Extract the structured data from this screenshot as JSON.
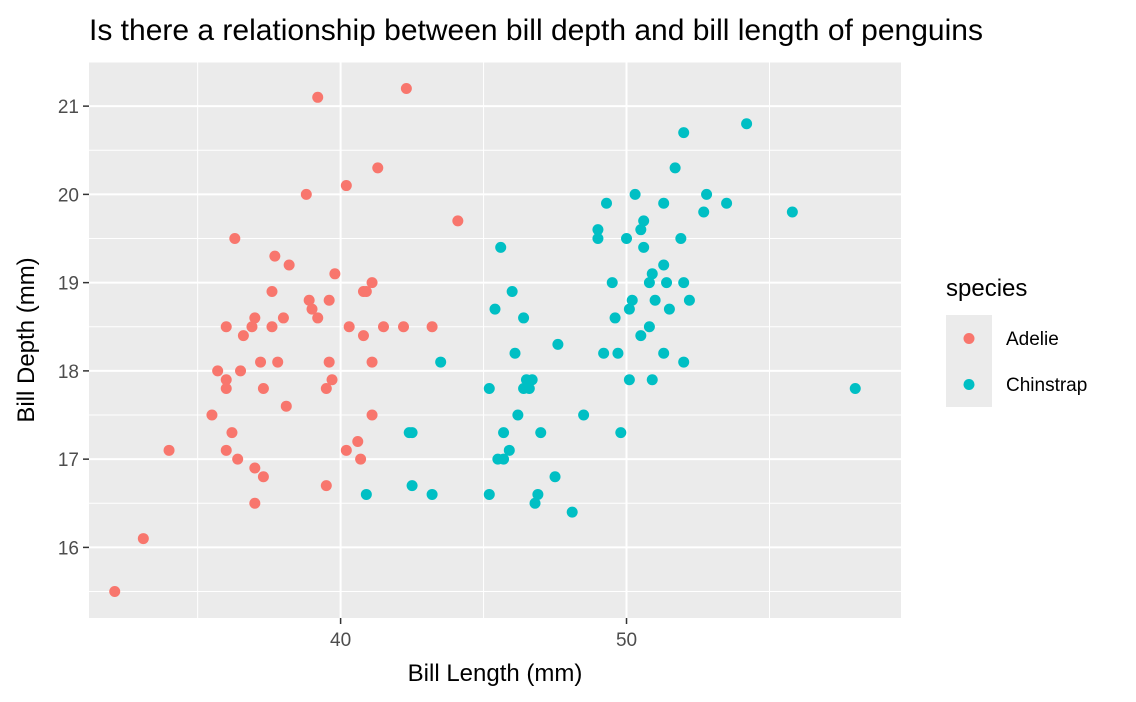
{
  "chart_data": {
    "type": "scatter",
    "title": "Is there a relationship between bill depth and bill length of penguins",
    "xlabel": "Bill Length (mm)",
    "ylabel": "Bill Depth (mm)",
    "xlim": [
      31.2,
      59.6
    ],
    "ylim": [
      15.2,
      21.5
    ],
    "xticks": [
      40,
      50
    ],
    "yticks": [
      16,
      17,
      18,
      19,
      20,
      21
    ],
    "grid": true,
    "legend": {
      "title": "species",
      "placement": "right"
    },
    "series": [
      {
        "name": "Adelie",
        "color": "#F8766D",
        "points": [
          [
            39.2,
            21.1
          ],
          [
            42.3,
            21.2
          ],
          [
            41.3,
            20.3
          ],
          [
            38.8,
            20.0
          ],
          [
            40.2,
            20.1
          ],
          [
            44.1,
            19.7
          ],
          [
            36.3,
            19.5
          ],
          [
            37.7,
            19.3
          ],
          [
            38.2,
            19.2
          ],
          [
            39.8,
            19.1
          ],
          [
            37.6,
            18.9
          ],
          [
            40.8,
            18.9
          ],
          [
            40.9,
            18.9
          ],
          [
            41.1,
            19.0
          ],
          [
            38.9,
            18.8
          ],
          [
            39.0,
            18.7
          ],
          [
            39.6,
            18.8
          ],
          [
            39.2,
            18.6
          ],
          [
            37.0,
            18.6
          ],
          [
            38.0,
            18.6
          ],
          [
            36.0,
            18.5
          ],
          [
            36.9,
            18.5
          ],
          [
            37.6,
            18.5
          ],
          [
            40.3,
            18.5
          ],
          [
            41.5,
            18.5
          ],
          [
            42.2,
            18.5
          ],
          [
            43.2,
            18.5
          ],
          [
            36.6,
            18.4
          ],
          [
            40.8,
            18.4
          ],
          [
            35.7,
            18.0
          ],
          [
            36.0,
            17.9
          ],
          [
            36.0,
            17.8
          ],
          [
            36.5,
            18.0
          ],
          [
            37.2,
            18.1
          ],
          [
            37.3,
            17.8
          ],
          [
            37.8,
            18.1
          ],
          [
            39.6,
            18.1
          ],
          [
            39.7,
            17.9
          ],
          [
            39.5,
            17.8
          ],
          [
            41.1,
            18.1
          ],
          [
            35.5,
            17.5
          ],
          [
            41.1,
            17.5
          ],
          [
            38.1,
            17.6
          ],
          [
            36.2,
            17.3
          ],
          [
            34.0,
            17.1
          ],
          [
            36.0,
            17.1
          ],
          [
            36.4,
            17.0
          ],
          [
            37.0,
            16.9
          ],
          [
            37.3,
            16.8
          ],
          [
            40.2,
            17.1
          ],
          [
            40.6,
            17.2
          ],
          [
            40.7,
            17.0
          ],
          [
            39.5,
            16.7
          ],
          [
            37.0,
            16.5
          ],
          [
            33.1,
            16.1
          ],
          [
            32.1,
            15.5
          ]
        ]
      },
      {
        "name": "Chinstrap",
        "color": "#00BFC4",
        "points": [
          [
            54.2,
            20.8
          ],
          [
            52.0,
            20.7
          ],
          [
            51.7,
            20.3
          ],
          [
            50.3,
            20.0
          ],
          [
            52.8,
            20.0
          ],
          [
            49.3,
            19.9
          ],
          [
            51.3,
            19.9
          ],
          [
            53.5,
            19.9
          ],
          [
            52.7,
            19.8
          ],
          [
            55.8,
            19.8
          ],
          [
            50.6,
            19.7
          ],
          [
            49.0,
            19.6
          ],
          [
            50.5,
            19.6
          ],
          [
            49.0,
            19.5
          ],
          [
            50.0,
            19.5
          ],
          [
            51.9,
            19.5
          ],
          [
            45.6,
            19.4
          ],
          [
            50.6,
            19.4
          ],
          [
            51.3,
            19.2
          ],
          [
            50.9,
            19.1
          ],
          [
            49.5,
            19.0
          ],
          [
            50.8,
            19.0
          ],
          [
            51.4,
            19.0
          ],
          [
            52.0,
            19.0
          ],
          [
            46.0,
            18.9
          ],
          [
            50.2,
            18.8
          ],
          [
            51.0,
            18.8
          ],
          [
            52.2,
            18.8
          ],
          [
            45.4,
            18.7
          ],
          [
            50.1,
            18.7
          ],
          [
            51.5,
            18.7
          ],
          [
            49.6,
            18.6
          ],
          [
            46.4,
            18.6
          ],
          [
            50.8,
            18.5
          ],
          [
            50.5,
            18.4
          ],
          [
            47.6,
            18.3
          ],
          [
            46.1,
            18.2
          ],
          [
            49.2,
            18.2
          ],
          [
            49.7,
            18.2
          ],
          [
            51.3,
            18.2
          ],
          [
            43.5,
            18.1
          ],
          [
            52.0,
            18.1
          ],
          [
            46.5,
            17.9
          ],
          [
            46.7,
            17.9
          ],
          [
            50.1,
            17.9
          ],
          [
            50.9,
            17.9
          ],
          [
            45.2,
            17.8
          ],
          [
            46.4,
            17.8
          ],
          [
            46.6,
            17.8
          ],
          [
            58.0,
            17.8
          ],
          [
            46.2,
            17.5
          ],
          [
            48.5,
            17.5
          ],
          [
            42.4,
            17.3
          ],
          [
            42.5,
            17.3
          ],
          [
            45.7,
            17.3
          ],
          [
            47.0,
            17.3
          ],
          [
            49.8,
            17.3
          ],
          [
            45.9,
            17.1
          ],
          [
            45.5,
            17.0
          ],
          [
            45.7,
            17.0
          ],
          [
            47.5,
            16.8
          ],
          [
            42.5,
            16.7
          ],
          [
            40.9,
            16.6
          ],
          [
            43.2,
            16.6
          ],
          [
            45.2,
            16.6
          ],
          [
            46.9,
            16.6
          ],
          [
            46.8,
            16.5
          ],
          [
            48.1,
            16.4
          ]
        ]
      }
    ]
  }
}
